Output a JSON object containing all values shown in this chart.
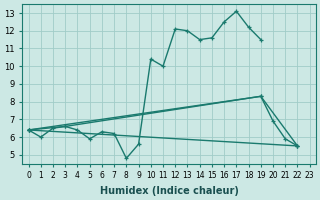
{
  "xlabel": "Humidex (Indice chaleur)",
  "background_color": "#cce8e4",
  "grid_color": "#a0ccc8",
  "line_color": "#1a7a6e",
  "xlim": [
    -0.5,
    23.5
  ],
  "ylim": [
    4.5,
    13.5
  ],
  "xticks": [
    0,
    1,
    2,
    3,
    4,
    5,
    6,
    7,
    8,
    9,
    10,
    11,
    12,
    13,
    14,
    15,
    16,
    17,
    18,
    19,
    20,
    21,
    22,
    23
  ],
  "yticks": [
    5,
    6,
    7,
    8,
    9,
    10,
    11,
    12,
    13
  ],
  "main_curve": {
    "x": [
      0,
      1,
      2,
      3,
      4,
      5,
      6,
      7,
      8,
      9,
      10,
      11,
      12,
      13,
      14,
      15,
      16,
      17,
      18,
      19
    ],
    "y": [
      6.4,
      6.0,
      6.5,
      6.6,
      6.4,
      5.9,
      6.3,
      6.2,
      4.8,
      5.6,
      10.4,
      10.0,
      12.1,
      12.0,
      11.5,
      11.6,
      12.5,
      13.1,
      12.2,
      11.5
    ]
  },
  "straight_lines": [
    {
      "x": [
        0,
        19,
        20,
        21,
        22
      ],
      "y": [
        6.4,
        8.3,
        6.9,
        5.9,
        5.5
      ]
    },
    {
      "x": [
        0,
        3,
        19,
        22
      ],
      "y": [
        6.4,
        6.6,
        8.3,
        5.5
      ]
    },
    {
      "x": [
        0,
        22
      ],
      "y": [
        6.4,
        5.5
      ]
    }
  ]
}
